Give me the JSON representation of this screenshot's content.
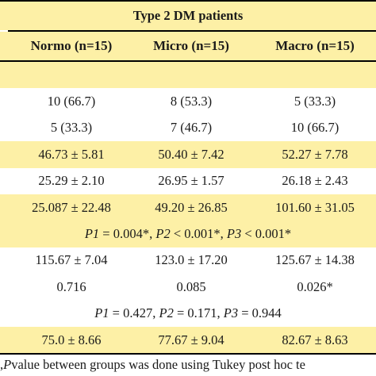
{
  "group_header": "Type 2 DM patients",
  "columns": [
    "Normo (n=15)",
    "Micro (n=15)",
    "Macro (n=15)"
  ],
  "rows": [
    {
      "type": "cells",
      "shade": "yellow",
      "cells": [
        "",
        "",
        ""
      ]
    },
    {
      "type": "cells",
      "shade": "white",
      "cells": [
        "10 (66.7)",
        "8 (53.3)",
        "5 (33.3)"
      ]
    },
    {
      "type": "cells",
      "shade": "white",
      "cells": [
        "5 (33.3)",
        "7 (46.7)",
        "10 (66.7)"
      ]
    },
    {
      "type": "cells",
      "shade": "yellow",
      "cells": [
        "46.73 ± 5.81",
        "50.40 ± 7.42",
        "52.27 ± 7.78"
      ]
    },
    {
      "type": "cells",
      "shade": "white",
      "cells": [
        "25.29 ± 2.10",
        "26.95 ± 1.57",
        "26.18 ± 2.43"
      ]
    },
    {
      "type": "cells",
      "shade": "yellow",
      "cells": [
        "25.087 ± 22.48",
        "49.20 ± 26.85",
        "101.60 ± 31.05"
      ]
    },
    {
      "type": "span",
      "shade": "yellow",
      "parts": [
        {
          "label": "P1",
          "text": " = 0.004*, "
        },
        {
          "label": "P2",
          "text": " < 0.001*, "
        },
        {
          "label": "P3",
          "text": " < 0.001*"
        }
      ]
    },
    {
      "type": "cells",
      "shade": "white",
      "cells": [
        "115.67 ± 7.04",
        "123.0 ± 17.20",
        "125.67 ± 14.38"
      ]
    },
    {
      "type": "cells",
      "shade": "white",
      "cells": [
        "0.716",
        "0.085",
        "0.026*"
      ]
    },
    {
      "type": "span",
      "shade": "white",
      "parts": [
        {
          "label": "P1",
          "text": " = 0.427, "
        },
        {
          "label": "P2",
          "text": " = 0.171, "
        },
        {
          "label": "P3",
          "text": " = 0.944"
        }
      ]
    },
    {
      "type": "cells",
      "shade": "yellow",
      "cells": [
        "75.0 ± 8.66",
        "77.67 ± 9.04",
        "82.67 ± 8.63"
      ]
    }
  ],
  "footnote": {
    "lead": ", ",
    "label": "P",
    "text": " value between groups was done using Tukey post hoc te"
  }
}
